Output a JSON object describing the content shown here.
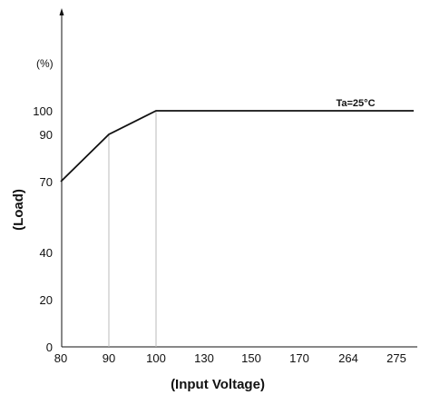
{
  "chart_data": {
    "type": "line",
    "x_categories": [
      "80",
      "90",
      "100",
      "130",
      "150",
      "170",
      "264",
      "275"
    ],
    "y_ticks": [
      "0",
      "20",
      "40",
      "70",
      "90",
      "100"
    ],
    "y_tick_values": [
      0,
      20,
      40,
      70,
      90,
      100
    ],
    "y_unit": "(%)",
    "xlabel": "(Input Voltage)",
    "ylabel": "(Load)",
    "annotation": "Ta=25°C",
    "series": [
      {
        "x_points": [
          80,
          90,
          100,
          275
        ],
        "y": [
          70,
          90,
          100,
          100
        ]
      }
    ],
    "ylim": [
      0,
      100
    ],
    "grid": "vertical reference lines at 90 and 100",
    "colors": {
      "line": "#111111",
      "axis": "#111111",
      "reference": "#bbbbbb"
    }
  }
}
